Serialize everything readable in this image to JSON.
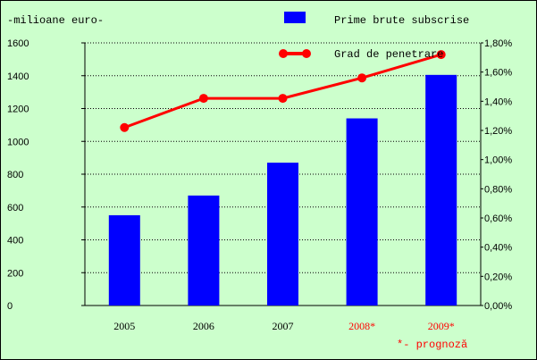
{
  "chart_data": {
    "type": "bar",
    "y_unit_label": "-milioane euro-",
    "categories": [
      "2005",
      "2006",
      "2007",
      "2008*",
      "2009*"
    ],
    "category_colors": [
      "#000000",
      "#000000",
      "#000000",
      "#ff0000",
      "#ff0000"
    ],
    "series": [
      {
        "name": "Prime brute subscrise",
        "type": "bar",
        "axis": "left",
        "color": "#0000ff",
        "values": [
          550,
          670,
          870,
          1140,
          1405
        ]
      },
      {
        "name": "Grad de penetrare",
        "type": "line",
        "axis": "right",
        "color": "#ff0000",
        "values": [
          1.22,
          1.42,
          1.42,
          1.56,
          1.72
        ]
      }
    ],
    "left_axis": {
      "ticks": [
        0,
        200,
        400,
        600,
        800,
        1000,
        1200,
        1400,
        1600
      ],
      "tick_labels": [
        "0",
        "200",
        "400",
        "600",
        "800",
        "1000",
        "1200",
        "1400",
        "1600"
      ],
      "ylim": [
        0,
        1600
      ]
    },
    "right_axis": {
      "ticks": [
        0.0,
        0.2,
        0.4,
        0.6,
        0.8,
        1.0,
        1.2,
        1.4,
        1.6,
        1.8
      ],
      "tick_labels": [
        "0,00%",
        "0,20%",
        "0,40%",
        "0,60%",
        "0,80%",
        "1,00%",
        "1,20%",
        "1,40%",
        "1,60%",
        "1,80%"
      ],
      "ylim": [
        0,
        1.8
      ]
    },
    "grid": true,
    "legend_position": "top-right",
    "footnote": "*- prognoză",
    "footnote_color": "#ff0000",
    "background_color": "#ccffcc"
  }
}
